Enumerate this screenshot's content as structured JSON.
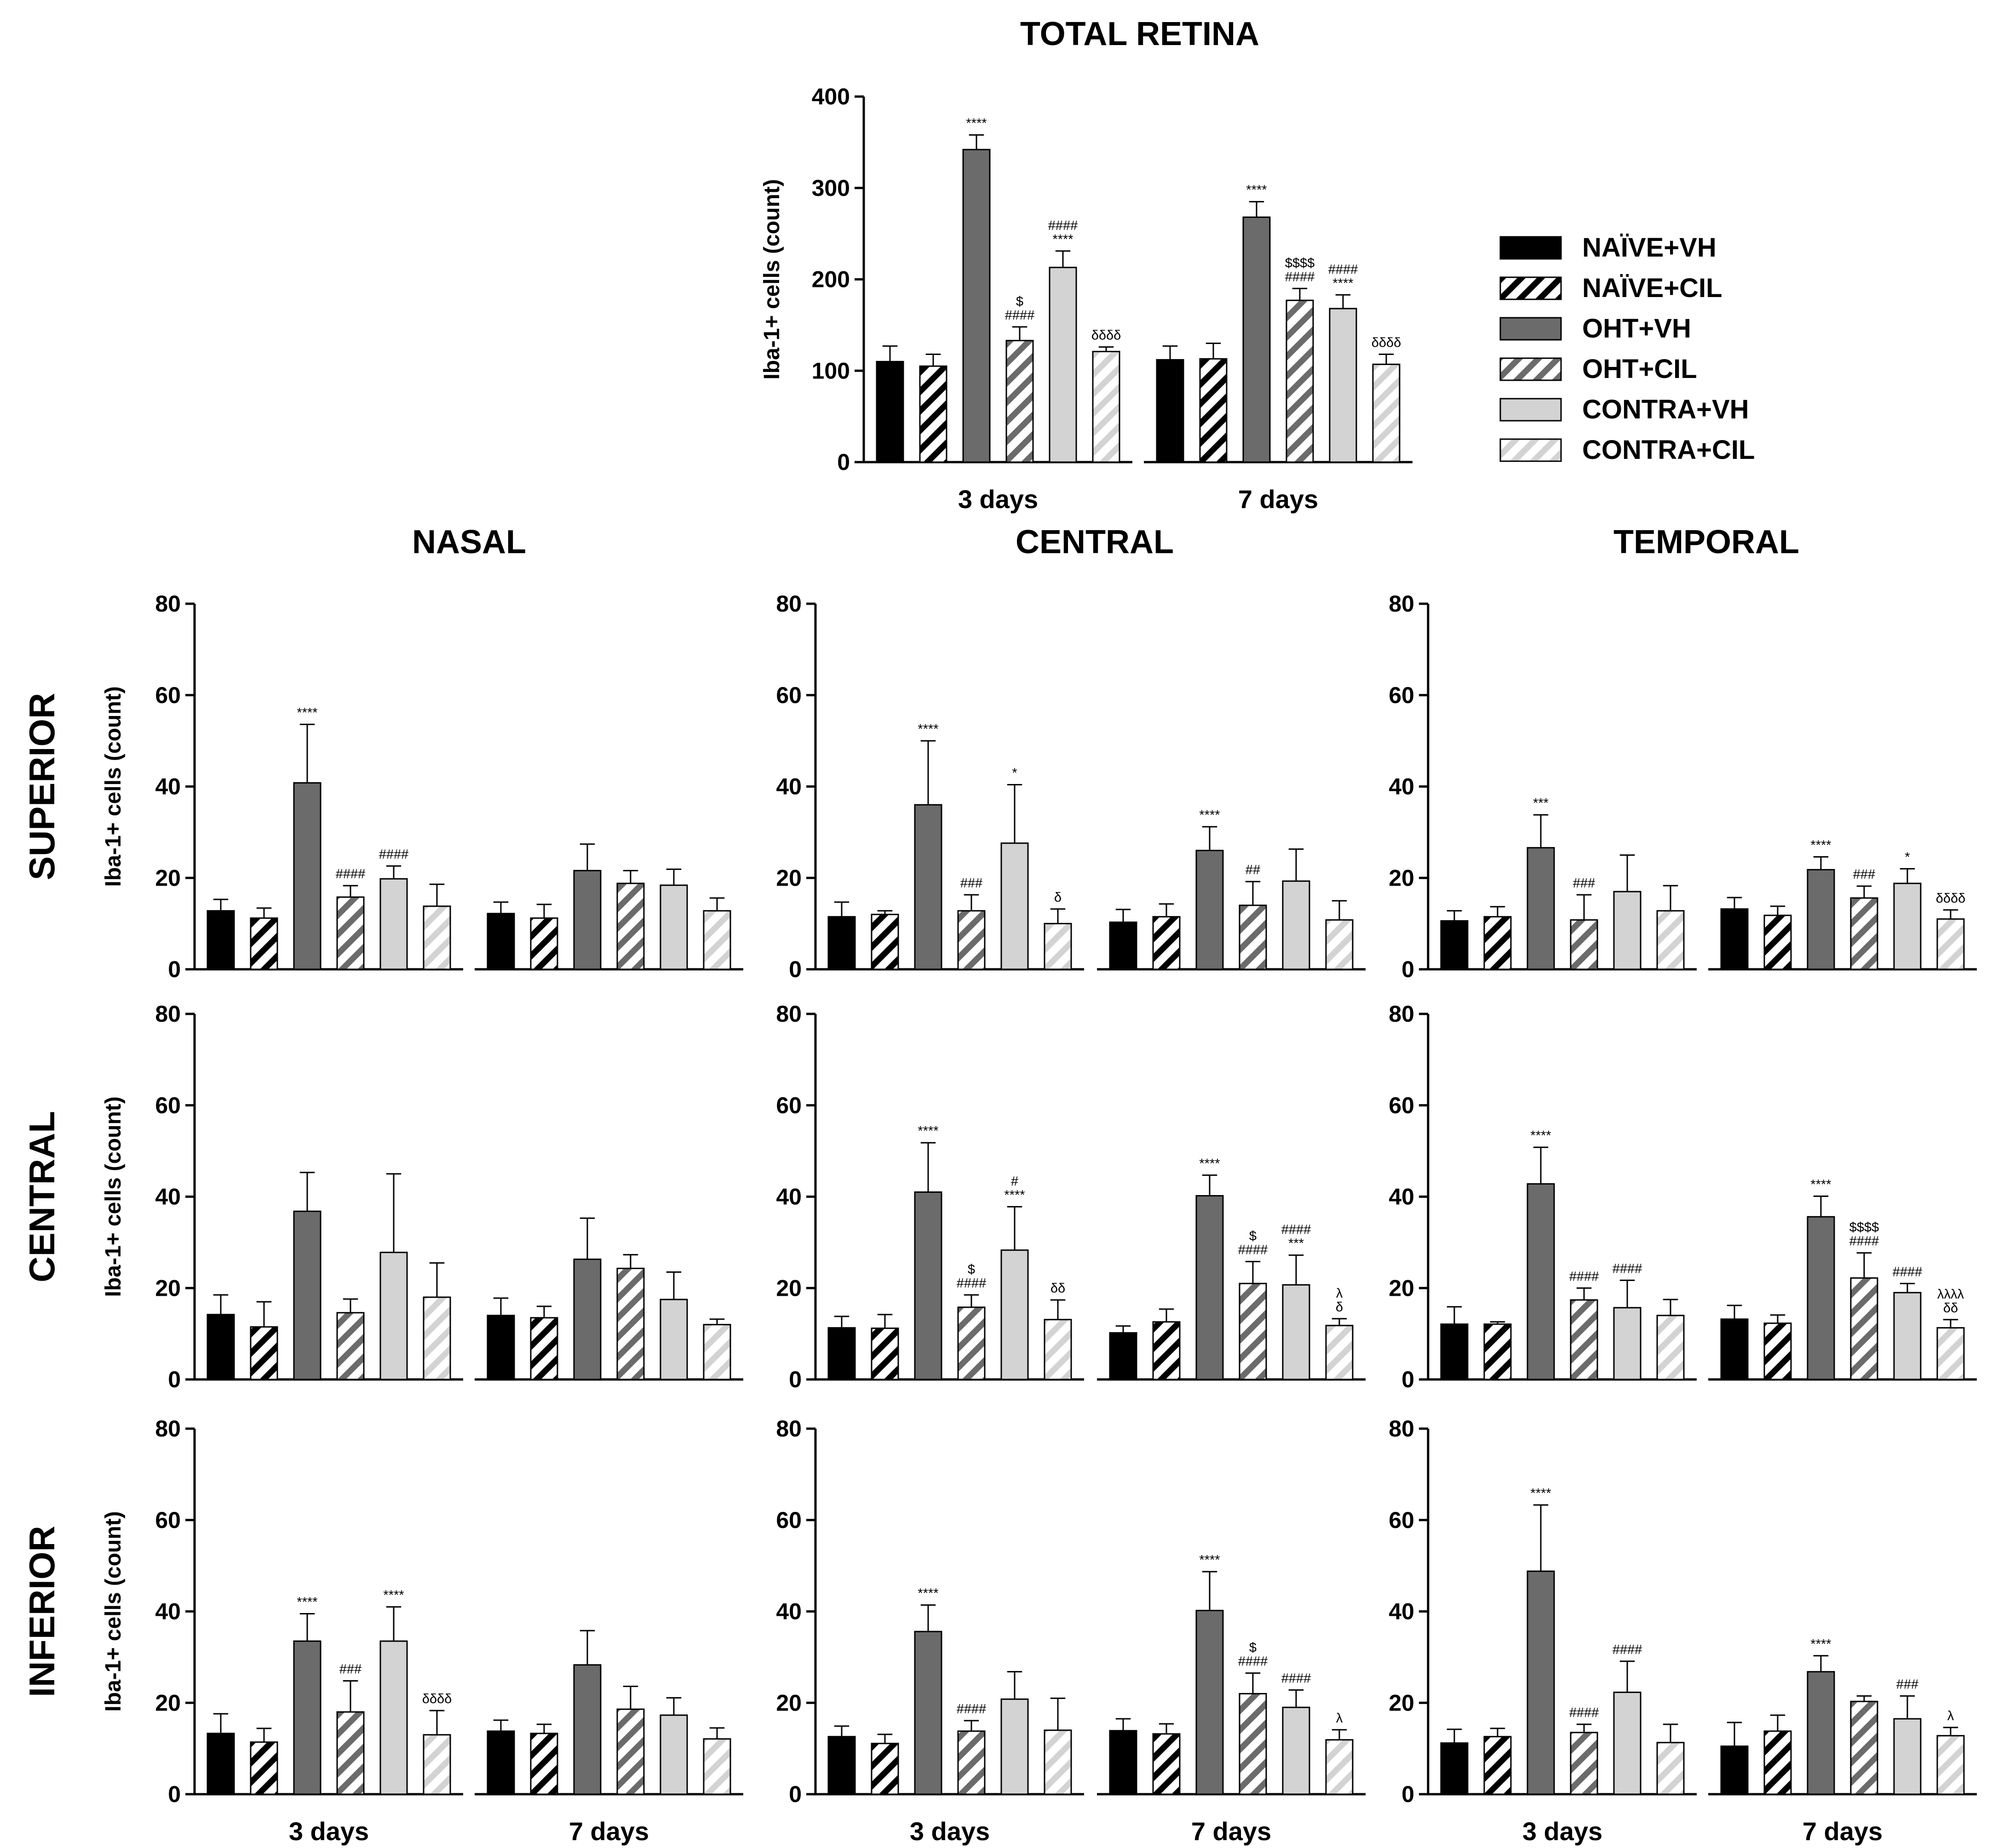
{
  "chart_data": {
    "type": "bar",
    "legend": {
      "position": "right of total retina panel",
      "series": [
        {
          "name": "NAÏVE+VH",
          "fill": "#000000",
          "hatch": false
        },
        {
          "name": "NAÏVE+CIL",
          "fill": "#ffffff",
          "hatch": true,
          "hatch_color": "#000000"
        },
        {
          "name": "OHT+VH",
          "fill": "#6b6b6b",
          "hatch": false
        },
        {
          "name": "OHT+CIL",
          "fill": "#ffffff",
          "hatch": true,
          "hatch_color": "#6b6b6b"
        },
        {
          "name": "CONTRA+VH",
          "fill": "#d3d3d3",
          "hatch": false
        },
        {
          "name": "CONTRA+CIL",
          "fill": "#ffffff",
          "hatch": true,
          "hatch_color": "#d3d3d3"
        }
      ]
    },
    "column_titles": [
      "NASAL",
      "CENTRAL",
      "TEMPORAL"
    ],
    "row_labels": [
      "SUPERIOR",
      "CENTRAL",
      "INFERIOR"
    ],
    "groups": [
      "3 days",
      "7 days"
    ],
    "ylabel": "Iba-1+ cells (count)",
    "total": {
      "title": "TOTAL RETINA",
      "ylim": [
        0,
        400
      ],
      "yticks": [
        0,
        100,
        200,
        300,
        400
      ],
      "values": [
        [
          110,
          105,
          342,
          133,
          213,
          121
        ],
        [
          112,
          113,
          268,
          177,
          168,
          107
        ]
      ],
      "errors": [
        [
          17,
          13,
          16,
          15,
          18,
          5
        ],
        [
          15,
          17,
          17,
          13,
          15,
          11
        ]
      ],
      "annotations": [
        [
          "",
          "",
          "****",
          "$\n####",
          "####\n****",
          "δδδδ"
        ],
        [
          "",
          "",
          "****",
          "$$$$\n####",
          "####\n****",
          "δδδδ"
        ]
      ]
    },
    "grid": {
      "ylim": [
        0,
        80
      ],
      "yticks": [
        0,
        20,
        40,
        60,
        80
      ],
      "panels": [
        [
          {
            "values": [
              [
                12.8,
                11.2,
                40.8,
                15.8,
                19.8,
                13.8
              ],
              [
                12.2,
                11.2,
                21.6,
                18.8,
                18.4,
                12.8
              ]
            ],
            "errors": [
              [
                2.5,
                2.2,
                12.8,
                2.5,
                2.8,
                4.8
              ],
              [
                2.5,
                3.0,
                5.8,
                2.8,
                3.5,
                2.8
              ]
            ],
            "annotations": [
              [
                "",
                "",
                "****",
                "####",
                "####",
                ""
              ],
              [
                "",
                "",
                "",
                "",
                "",
                ""
              ]
            ]
          },
          {
            "values": [
              [
                11.5,
                12.0,
                36.0,
                12.8,
                27.6,
                10.0
              ],
              [
                10.3,
                11.5,
                26.0,
                14.0,
                19.3,
                10.8
              ]
            ],
            "errors": [
              [
                3.2,
                0.8,
                14.0,
                3.5,
                12.8,
                3.2
              ],
              [
                2.8,
                2.8,
                5.2,
                5.2,
                7.0,
                4.2
              ]
            ],
            "annotations": [
              [
                "",
                "",
                "****",
                "###",
                "*",
                "δ"
              ],
              [
                "",
                "",
                "****",
                "##",
                "",
                ""
              ]
            ]
          },
          {
            "values": [
              [
                10.6,
                11.5,
                26.6,
                10.8,
                17.0,
                12.8
              ],
              [
                13.2,
                11.8,
                21.8,
                15.6,
                18.8,
                11.0
              ]
            ],
            "errors": [
              [
                2.2,
                2.2,
                7.2,
                5.5,
                8.0,
                5.5
              ],
              [
                2.5,
                2.0,
                2.8,
                2.6,
                3.2,
                2.0
              ]
            ],
            "annotations": [
              [
                "",
                "",
                "***",
                "###",
                "",
                ""
              ],
              [
                "",
                "",
                "****",
                "###",
                "*",
                "δδδδ"
              ]
            ]
          }
        ],
        [
          {
            "values": [
              [
                14.2,
                11.5,
                36.8,
                14.6,
                27.8,
                18.0
              ],
              [
                14.0,
                13.5,
                26.3,
                24.3,
                17.5,
                12.0
              ]
            ],
            "errors": [
              [
                4.3,
                5.5,
                8.5,
                3.0,
                17.2,
                7.5
              ],
              [
                3.8,
                2.5,
                9.0,
                3.0,
                6.0,
                1.2
              ]
            ],
            "annotations": [
              [
                "",
                "",
                "",
                "",
                "",
                ""
              ],
              [
                "",
                "",
                "",
                "",
                "",
                ""
              ]
            ]
          },
          {
            "values": [
              [
                11.3,
                11.2,
                41.0,
                15.8,
                28.3,
                13.1
              ],
              [
                10.2,
                12.6,
                40.2,
                21.0,
                20.7,
                11.8
              ]
            ],
            "errors": [
              [
                2.5,
                3.0,
                10.8,
                2.7,
                9.5,
                4.3
              ],
              [
                1.5,
                2.8,
                4.5,
                4.8,
                6.5,
                1.5
              ]
            ],
            "annotations": [
              [
                "",
                "",
                "****",
                "$\n####",
                "#\n****",
                "δδ"
              ],
              [
                "",
                "",
                "****",
                "$\n####",
                "####\n***",
                "λ\nδ"
              ]
            ]
          },
          {
            "values": [
              [
                12.1,
                12.1,
                42.8,
                17.4,
                15.7,
                14.0
              ],
              [
                13.2,
                12.3,
                35.6,
                22.2,
                19.0,
                11.3
              ]
            ],
            "errors": [
              [
                3.8,
                0.5,
                8.0,
                2.6,
                6.0,
                3.5
              ],
              [
                3.0,
                1.8,
                4.5,
                5.5,
                2.0,
                1.8
              ]
            ],
            "annotations": [
              [
                "",
                "",
                "****",
                "####",
                "####",
                ""
              ],
              [
                "",
                "",
                "****",
                "$$$$\n####",
                "####",
                "λλλλ\nδδ"
              ]
            ]
          }
        ],
        [
          {
            "values": [
              [
                13.3,
                11.4,
                33.5,
                18.0,
                33.5,
                13.0
              ],
              [
                13.8,
                13.3,
                28.3,
                18.6,
                17.3,
                12.1
              ]
            ],
            "errors": [
              [
                4.3,
                3.0,
                6.0,
                6.8,
                7.5,
                5.3
              ],
              [
                2.4,
                2.0,
                7.5,
                5.0,
                3.8,
                2.4
              ]
            ],
            "annotations": [
              [
                "",
                "",
                "****",
                "###",
                "****",
                "δδδδ"
              ],
              [
                "",
                "",
                "",
                "",
                "",
                ""
              ]
            ]
          },
          {
            "values": [
              [
                12.6,
                11.1,
                35.6,
                13.8,
                20.8,
                14.0
              ],
              [
                13.9,
                13.2,
                40.2,
                22.0,
                19.0,
                11.9
              ]
            ],
            "errors": [
              [
                2.3,
                2.0,
                5.8,
                2.3,
                6.0,
                7.0
              ],
              [
                2.6,
                2.2,
                8.5,
                4.5,
                3.8,
                2.2
              ]
            ],
            "annotations": [
              [
                "",
                "",
                "****",
                "####",
                "",
                ""
              ],
              [
                "",
                "",
                "****",
                "$\n####",
                "####",
                "λ"
              ]
            ]
          },
          {
            "values": [
              [
                11.2,
                12.6,
                48.8,
                13.5,
                22.3,
                11.3
              ],
              [
                10.5,
                13.8,
                26.8,
                20.3,
                16.5,
                12.8
              ]
            ],
            "errors": [
              [
                3.0,
                1.8,
                14.5,
                1.8,
                6.8,
                4.0
              ],
              [
                5.2,
                3.5,
                3.5,
                1.2,
                5.0,
                1.8
              ]
            ],
            "annotations": [
              [
                "",
                "",
                "****",
                "####",
                "####",
                ""
              ],
              [
                "",
                "",
                "****",
                "",
                "###",
                "λ"
              ]
            ]
          }
        ]
      ]
    }
  }
}
